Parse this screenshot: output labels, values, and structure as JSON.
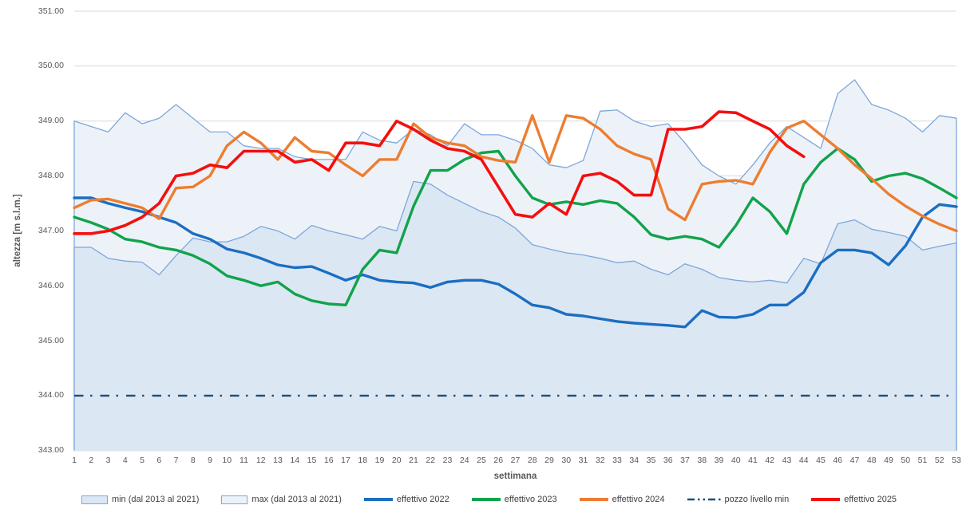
{
  "y_axis": {
    "title": "altezza [m s.l.m.]",
    "min": 343,
    "max": 351,
    "tick_labels": [
      "343.00",
      "344.00",
      "345.00",
      "346.00",
      "347.00",
      "348.00",
      "349.00",
      "350.00",
      "351.00"
    ]
  },
  "x_axis": {
    "title": "settimana",
    "tick_labels": [
      1,
      2,
      3,
      4,
      5,
      6,
      7,
      8,
      9,
      10,
      11,
      12,
      13,
      14,
      15,
      16,
      17,
      18,
      19,
      20,
      21,
      22,
      23,
      24,
      25,
      26,
      27,
      28,
      29,
      30,
      31,
      32,
      33,
      34,
      35,
      36,
      37,
      38,
      39,
      40,
      41,
      42,
      43,
      44,
      45,
      46,
      47,
      48,
      49,
      50,
      51,
      52,
      53
    ]
  },
  "legend": [
    {
      "label": "min (dal 2013 al 2021)",
      "type": "area",
      "fill": "#DCE7F4",
      "border": "#7CA7DB"
    },
    {
      "label": "max (dal 2013 al 2021)",
      "type": "area",
      "fill": "#EDF2F9",
      "border": "#7CA7DB"
    },
    {
      "label": "effettivo 2022",
      "type": "line",
      "color": "#1B6EC2"
    },
    {
      "label": "effettivo 2023",
      "type": "line",
      "color": "#12A34A"
    },
    {
      "label": "effettivo 2024",
      "type": "line",
      "color": "#ED7D31"
    },
    {
      "label": "pozzo livello min",
      "type": "dashline",
      "color": "#1F4E79"
    },
    {
      "label": "effettivo 2025",
      "type": "line",
      "color": "#F40F0F"
    }
  ],
  "chart_data": {
    "type": "line",
    "title": "",
    "xlabel": "settimana",
    "ylabel": "altezza [m s.l.m.]",
    "ylim": [
      343,
      351
    ],
    "xlim": [
      1,
      53
    ],
    "grid": true,
    "legend_position": "bottom",
    "colors": {
      "grid": "#D9D9D9",
      "axis": "#BFBFBF",
      "band_border": "#7CA7DB",
      "max_fill": "#EDF2F9",
      "min_fill": "#DCE7F4",
      "text": "#595959"
    },
    "series": [
      {
        "name": "max (dal 2013 al 2021)",
        "type": "area",
        "fill": "#EDF2F9",
        "border": "#7CA7DB",
        "values": [
          349.0,
          348.9,
          348.8,
          349.15,
          348.95,
          349.05,
          349.3,
          349.05,
          348.8,
          348.8,
          348.55,
          348.5,
          348.5,
          348.35,
          348.3,
          348.3,
          348.3,
          348.8,
          348.65,
          348.6,
          348.85,
          348.75,
          348.55,
          348.95,
          348.75,
          348.75,
          348.65,
          348.5,
          348.2,
          348.15,
          348.28,
          349.18,
          349.2,
          349.0,
          348.9,
          348.95,
          348.6,
          348.2,
          348.0,
          347.85,
          348.2,
          348.6,
          348.9,
          348.7,
          348.5,
          349.5,
          349.75,
          349.3,
          349.2,
          349.05,
          348.8,
          349.1,
          349.05
        ]
      },
      {
        "name": "min (dal 2013 al 2021)",
        "type": "area",
        "fill": "#DCE7F4",
        "border": "#7CA7DB",
        "values": [
          346.7,
          346.7,
          346.5,
          346.45,
          346.43,
          346.2,
          346.55,
          346.87,
          346.8,
          346.8,
          346.9,
          347.08,
          347.0,
          346.85,
          347.1,
          347.0,
          346.93,
          346.85,
          347.08,
          347.0,
          347.9,
          347.85,
          347.65,
          347.5,
          347.35,
          347.25,
          347.05,
          346.75,
          346.67,
          346.6,
          346.56,
          346.5,
          346.42,
          346.45,
          346.3,
          346.2,
          346.4,
          346.3,
          346.15,
          346.1,
          346.07,
          346.1,
          346.05,
          346.5,
          346.4,
          347.13,
          347.2,
          347.03,
          346.97,
          346.9,
          346.65,
          346.72,
          346.78
        ]
      },
      {
        "name": "pozzo livello min",
        "type": "hline",
        "color": "#1F4E79",
        "value": 344.0,
        "dash": "11.5 8.5 2.5 10",
        "width": 2.4
      },
      {
        "name": "effettivo 2022",
        "type": "line",
        "color": "#1B6EC2",
        "width": 3.4,
        "values": [
          347.6,
          347.6,
          347.5,
          347.42,
          347.35,
          347.25,
          347.15,
          346.95,
          346.85,
          346.67,
          346.6,
          346.5,
          346.38,
          346.33,
          346.35,
          346.23,
          346.1,
          346.2,
          346.1,
          346.07,
          346.05,
          345.97,
          346.07,
          346.1,
          346.1,
          346.03,
          345.85,
          345.65,
          345.6,
          345.48,
          345.45,
          345.4,
          345.35,
          345.32,
          345.3,
          345.28,
          345.25,
          345.55,
          345.43,
          345.42,
          345.48,
          345.65,
          345.65,
          345.88,
          346.42,
          346.65,
          346.65,
          346.6,
          346.38,
          346.73,
          347.25,
          347.48,
          347.44
        ]
      },
      {
        "name": "effettivo 2023",
        "type": "line",
        "color": "#12A34A",
        "width": 3.4,
        "values": [
          347.25,
          347.15,
          347.03,
          346.85,
          346.8,
          346.7,
          346.65,
          346.55,
          346.4,
          346.18,
          346.1,
          346.0,
          346.07,
          345.85,
          345.73,
          345.67,
          345.65,
          346.3,
          346.65,
          346.6,
          347.45,
          348.1,
          348.1,
          348.3,
          348.42,
          348.45,
          348.0,
          347.6,
          347.48,
          347.53,
          347.48,
          347.55,
          347.5,
          347.25,
          346.93,
          346.85,
          346.9,
          346.85,
          346.7,
          347.1,
          347.6,
          347.35,
          346.95,
          347.85,
          348.25,
          348.5,
          348.3,
          347.9,
          348.0,
          348.05,
          347.95,
          347.78,
          347.6
        ]
      },
      {
        "name": "effettivo 2024",
        "type": "line",
        "color": "#ED7D31",
        "width": 3.4,
        "values": [
          347.42,
          347.56,
          347.58,
          347.5,
          347.42,
          347.22,
          347.78,
          347.8,
          348.0,
          348.55,
          348.8,
          348.6,
          348.3,
          348.7,
          348.45,
          348.42,
          348.2,
          348.0,
          348.3,
          348.3,
          348.95,
          348.7,
          348.6,
          348.55,
          348.35,
          348.28,
          348.25,
          349.1,
          348.25,
          349.1,
          349.05,
          348.85,
          348.55,
          348.4,
          348.3,
          347.4,
          347.2,
          347.85,
          347.9,
          347.92,
          347.85,
          348.43,
          348.87,
          349.0,
          348.75,
          348.5,
          348.2,
          347.95,
          347.67,
          347.45,
          347.27,
          347.12,
          347.0
        ]
      },
      {
        "name": "effettivo 2025",
        "type": "line",
        "color": "#F40F0F",
        "width": 3.6,
        "values": [
          346.95,
          346.95,
          347.0,
          347.1,
          347.25,
          347.5,
          348.0,
          348.05,
          348.2,
          348.15,
          348.45,
          348.45,
          348.45,
          348.25,
          348.3,
          348.1,
          348.6,
          348.6,
          348.55,
          349.0,
          348.85,
          348.65,
          348.5,
          348.45,
          348.3,
          347.8,
          347.3,
          347.25,
          347.5,
          347.3,
          348.0,
          348.05,
          347.9,
          347.65,
          347.65,
          348.85,
          348.85,
          348.9,
          349.17,
          349.15,
          349.0,
          348.85,
          348.55,
          348.35
        ]
      }
    ]
  }
}
